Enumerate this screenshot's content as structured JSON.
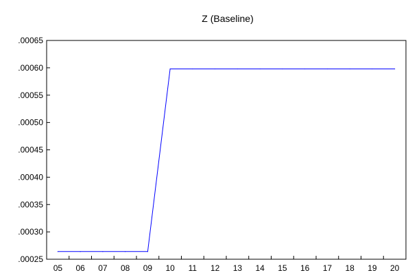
{
  "chart_data": {
    "type": "line",
    "title": "Z (Baseline)",
    "xlabel": "",
    "ylabel": "",
    "x": [
      "05",
      "06",
      "07",
      "08",
      "09",
      "10",
      "11",
      "12",
      "13",
      "14",
      "15",
      "16",
      "17",
      "18",
      "19",
      "20"
    ],
    "series": [
      {
        "values": [
          0.000264,
          0.000264,
          0.000264,
          0.000264,
          0.000264,
          0.000598,
          0.000598,
          0.000598,
          0.000598,
          0.000598,
          0.000598,
          0.000598,
          0.000598,
          0.000598,
          0.000598,
          0.000598
        ],
        "color": "#0000ff"
      }
    ],
    "ylim": [
      0.00025,
      0.00065
    ],
    "yticks": [
      ".00025",
      ".00030",
      ".00035",
      ".00040",
      ".00045",
      ".00050",
      ".00055",
      ".00060",
      ".00065"
    ],
    "grid": false,
    "legend": "none"
  }
}
